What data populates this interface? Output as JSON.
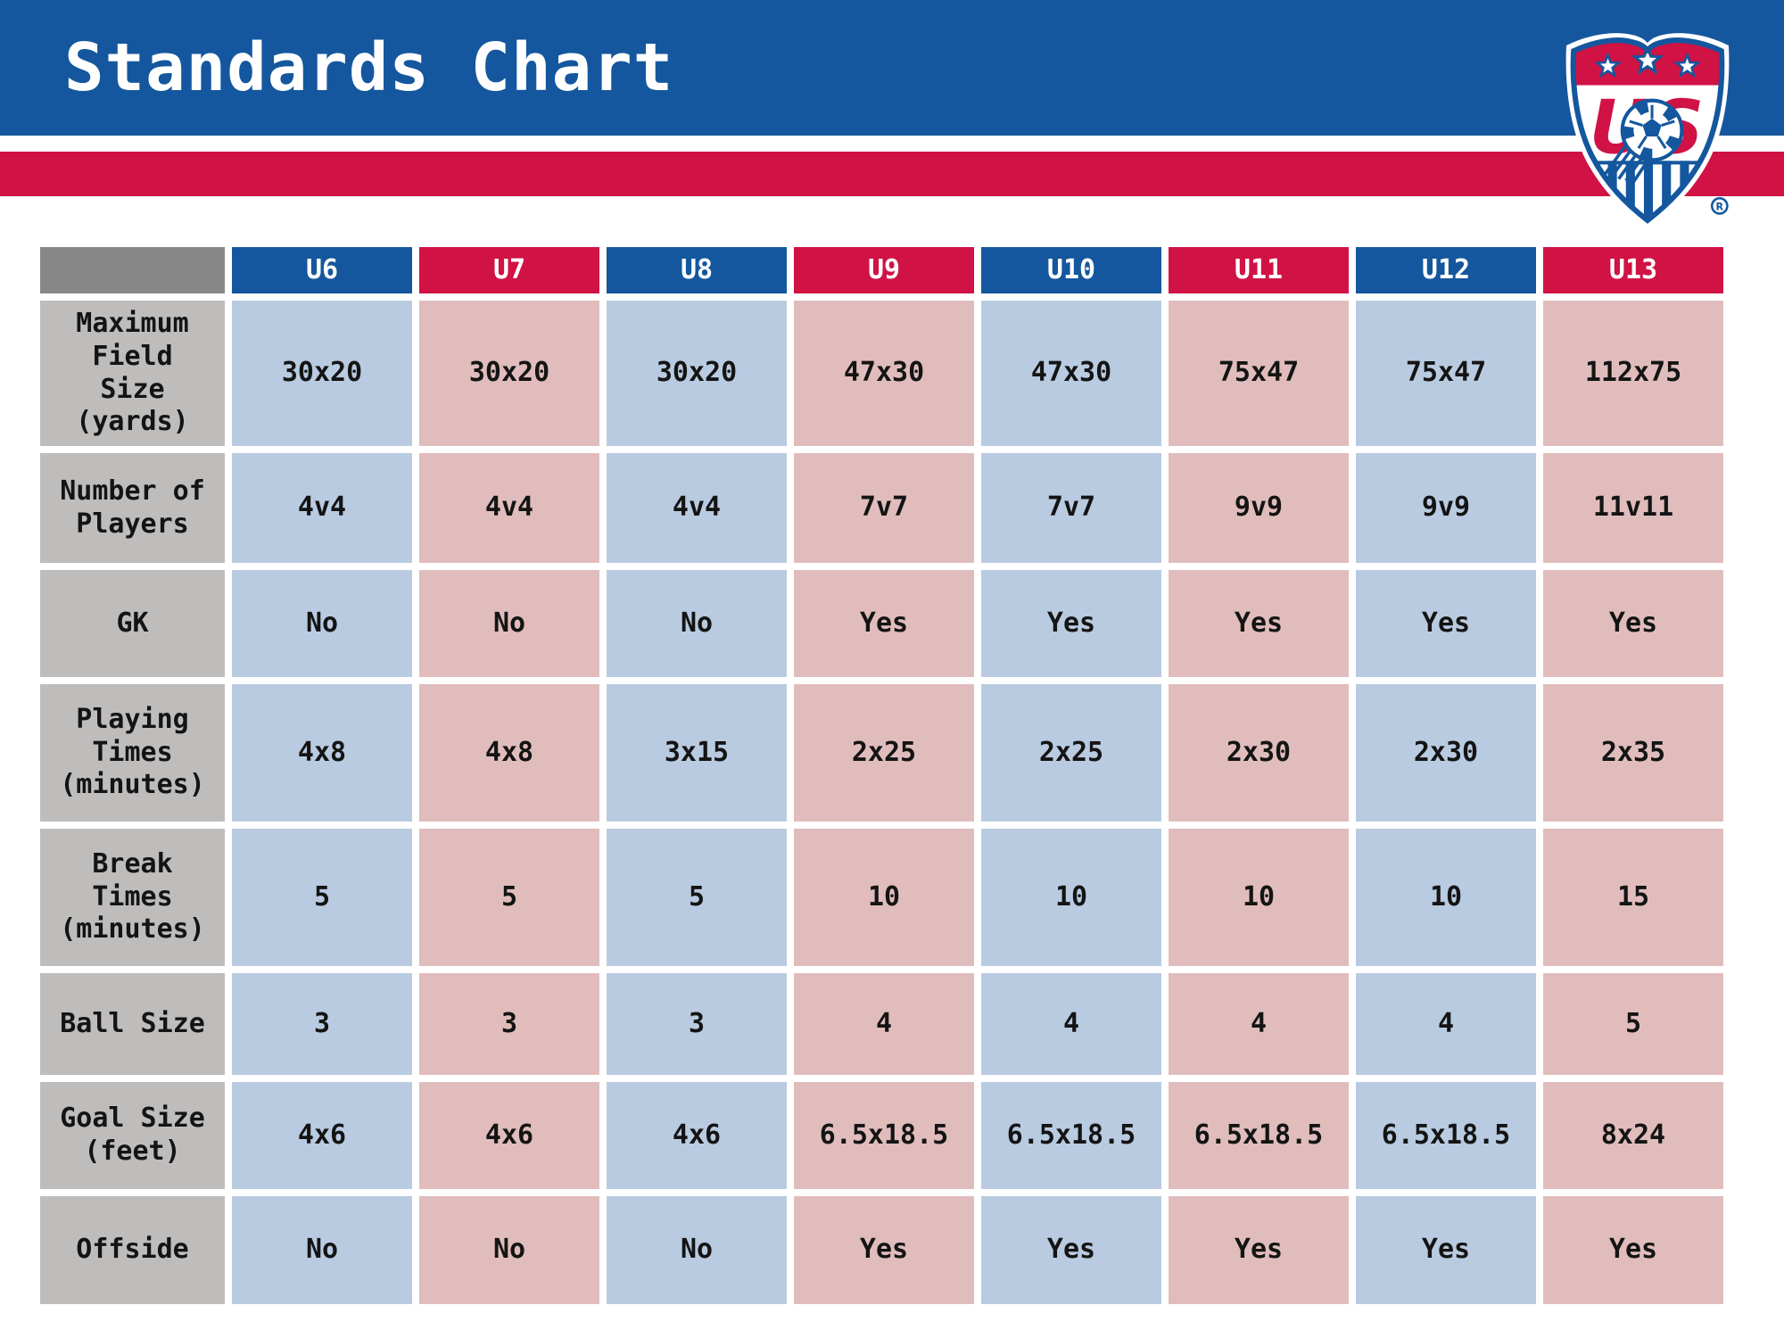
{
  "title": "Standards Chart",
  "logo": {
    "name": "us-soccer-crest",
    "registered": "®"
  },
  "colors": {
    "banner_blue": "#14579E",
    "banner_red": "#D01245",
    "cell_light_blue": "#B9CBE1",
    "cell_light_pink": "#E0BDBC",
    "row_header_gray": "#BFBDBC",
    "corner_dark_gray": "#878787",
    "cell_text": "#141414",
    "header_text": "#FFFFFF"
  },
  "chart_data": {
    "type": "table",
    "title": "Standards Chart",
    "columns": [
      "U6",
      "U7",
      "U8",
      "U9",
      "U10",
      "U11",
      "U12",
      "U13"
    ],
    "header_colors": [
      "blue",
      "red",
      "blue",
      "red",
      "blue",
      "red",
      "blue",
      "red"
    ],
    "rows": [
      {
        "label": "Maximum Field Size (yards)",
        "label_display": "Maximum\nField\nSize\n(yards)",
        "values": [
          "30x20",
          "30x20",
          "30x20",
          "47x30",
          "47x30",
          "75x47",
          "75x47",
          "112x75"
        ]
      },
      {
        "label": "Number of Players",
        "label_display": "Number of\nPlayers",
        "values": [
          "4v4",
          "4v4",
          "4v4",
          "7v7",
          "7v7",
          "9v9",
          "9v9",
          "11v11"
        ]
      },
      {
        "label": "GK",
        "label_display": "GK",
        "values": [
          "No",
          "No",
          "No",
          "Yes",
          "Yes",
          "Yes",
          "Yes",
          "Yes"
        ]
      },
      {
        "label": "Playing Times (minutes)",
        "label_display": "Playing\nTimes\n(minutes)",
        "values": [
          "4x8",
          "4x8",
          "3x15",
          "2x25",
          "2x25",
          "2x30",
          "2x30",
          "2x35"
        ]
      },
      {
        "label": "Break Times (minutes)",
        "label_display": "Break\nTimes\n(minutes)",
        "values": [
          "5",
          "5",
          "5",
          "10",
          "10",
          "10",
          "10",
          "15"
        ]
      },
      {
        "label": "Ball Size",
        "label_display": "Ball Size",
        "values": [
          "3",
          "3",
          "3",
          "4",
          "4",
          "4",
          "4",
          "5"
        ]
      },
      {
        "label": "Goal Size (feet)",
        "label_display": "Goal Size\n(feet)",
        "values": [
          "4x6",
          "4x6",
          "4x6",
          "6.5x18.5",
          "6.5x18.5",
          "6.5x18.5",
          "6.5x18.5",
          "8x24"
        ]
      },
      {
        "label": "Offside",
        "label_display": "Offside",
        "values": [
          "No",
          "No",
          "No",
          "Yes",
          "Yes",
          "Yes",
          "Yes",
          "Yes"
        ]
      }
    ]
  }
}
